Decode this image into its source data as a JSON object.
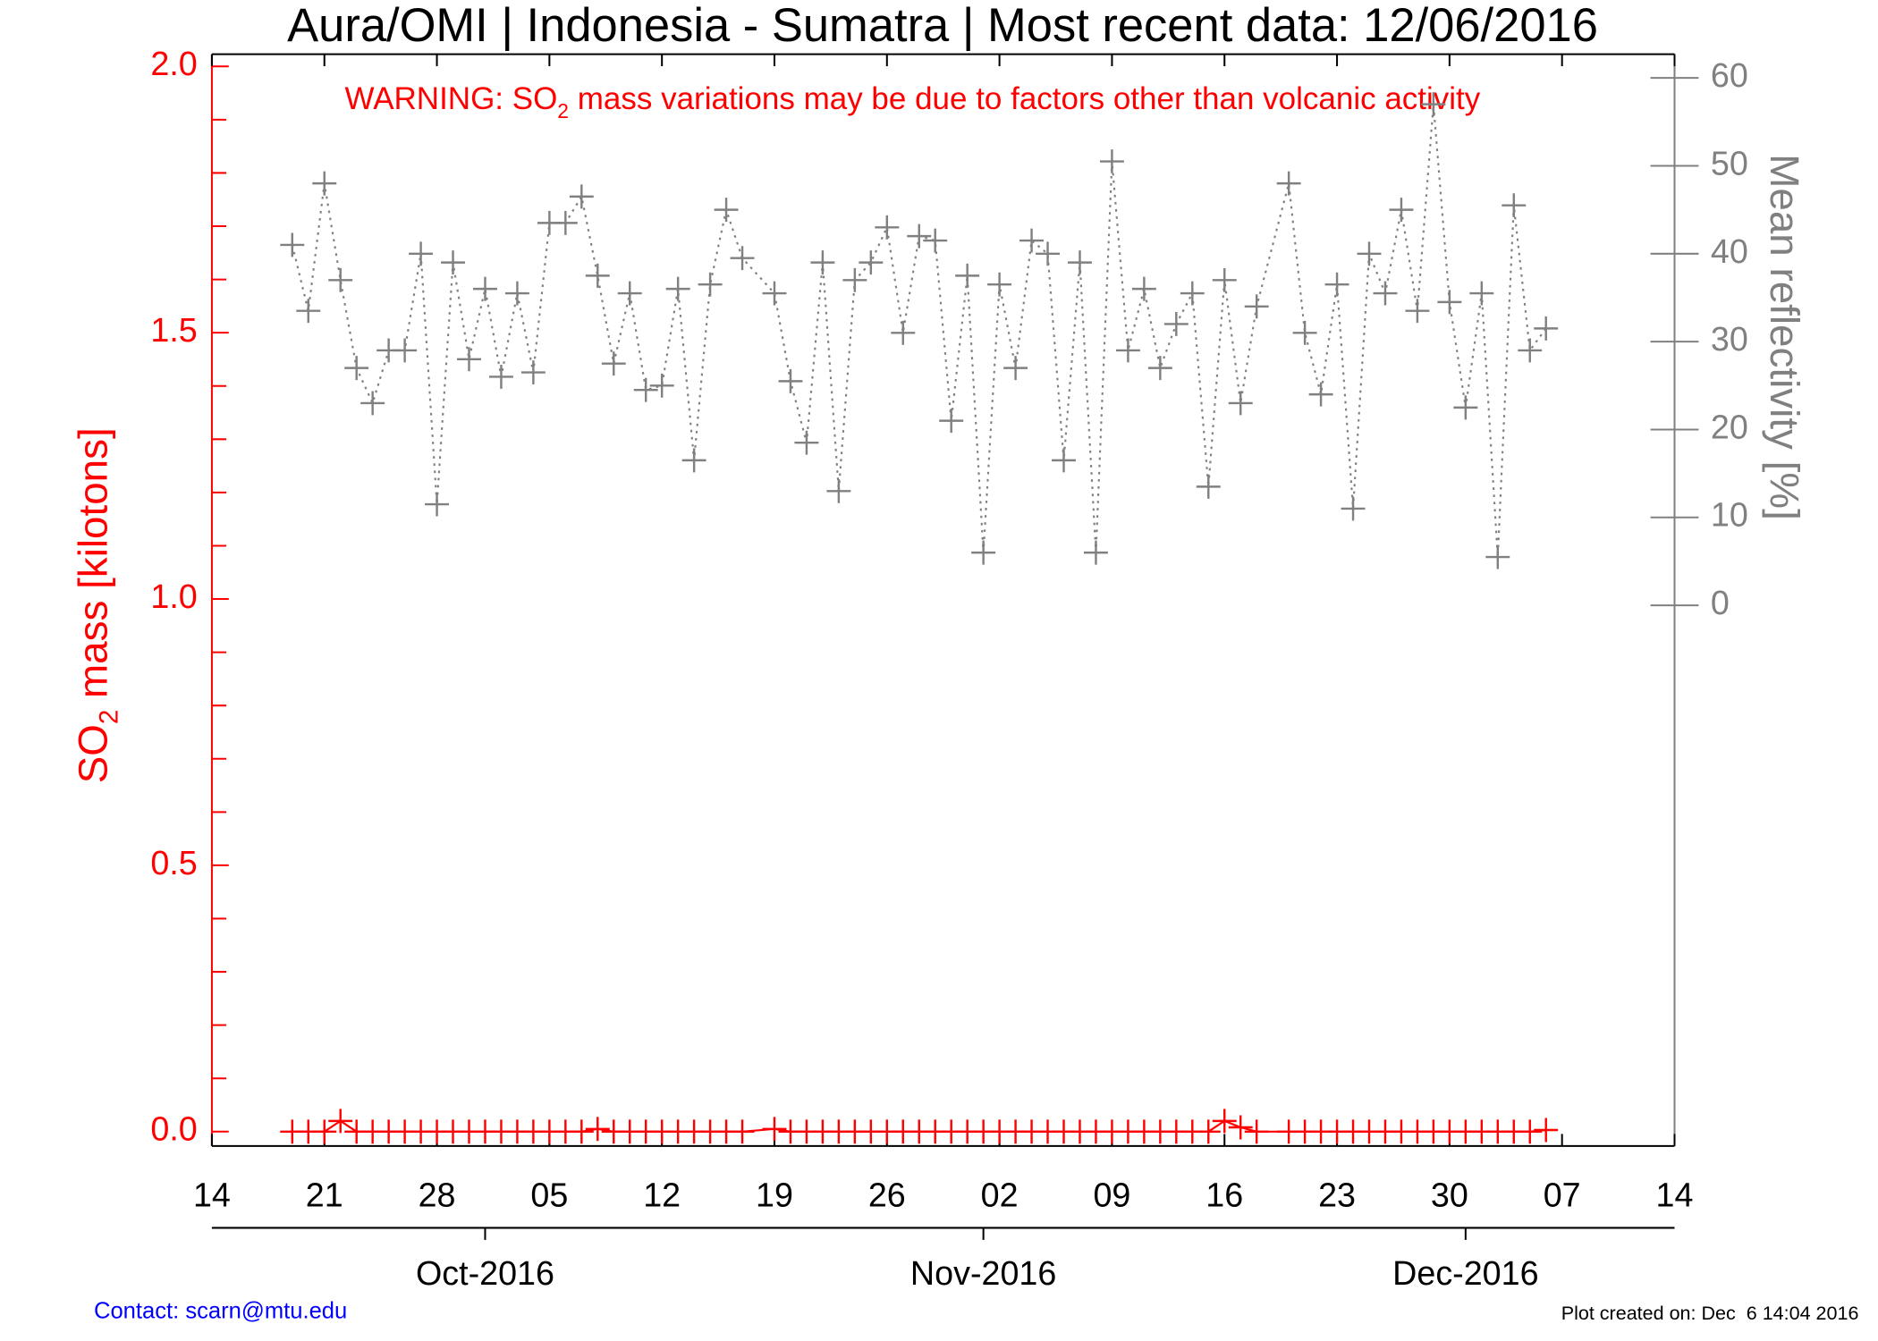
{
  "chart_data": {
    "type": "line",
    "title": "Aura/OMI | Indonesia - Sumatra | Most recent data: 12/06/2016",
    "warning": {
      "before": "WARNING: SO",
      "sub": "2",
      "after": " mass variations may be due to factors other than volcanic activity"
    },
    "ylabel": {
      "before": "SO",
      "sub": "2",
      "after": " mass [kilotons]"
    },
    "y2label": "Mean reflectivity [%]",
    "contact": "Contact: scarn@mtu.edu",
    "created": "Plot created on: Dec  6 14:04 2016",
    "xlim": [
      "2016-09-14",
      "2016-12-14"
    ],
    "xticks": [
      {
        "value": "2016-09-14",
        "label": "14"
      },
      {
        "value": "2016-09-21",
        "label": "21"
      },
      {
        "value": "2016-09-28",
        "label": "28"
      },
      {
        "value": "2016-10-05",
        "label": "05"
      },
      {
        "value": "2016-10-12",
        "label": "12"
      },
      {
        "value": "2016-10-19",
        "label": "19"
      },
      {
        "value": "2016-10-26",
        "label": "26"
      },
      {
        "value": "2016-11-02",
        "label": "02"
      },
      {
        "value": "2016-11-09",
        "label": "09"
      },
      {
        "value": "2016-11-16",
        "label": "16"
      },
      {
        "value": "2016-11-23",
        "label": "23"
      },
      {
        "value": "2016-11-30",
        "label": "30"
      },
      {
        "value": "2016-12-07",
        "label": "07"
      },
      {
        "value": "2016-12-14",
        "label": "14"
      }
    ],
    "month_ticks": [
      {
        "value": "2016-10-01",
        "label": "Oct-2016"
      },
      {
        "value": "2016-11-01",
        "label": "Nov-2016"
      },
      {
        "value": "2016-12-01",
        "label": "Dec-2016"
      }
    ],
    "ylim": [
      -0.027,
      2.023
    ],
    "yticks": [
      {
        "value": 0,
        "label": "0.0"
      },
      {
        "value": 0.5,
        "label": "0.5"
      },
      {
        "value": 1,
        "label": "1.0"
      },
      {
        "value": 1.5,
        "label": "1.5"
      },
      {
        "value": 2,
        "label": "2.0"
      }
    ],
    "yminorticks": [
      0.1,
      0.2,
      0.3,
      0.4,
      0.6,
      0.7,
      0.8,
      0.9,
      1.1,
      1.2,
      1.3,
      1.4,
      1.6,
      1.7,
      1.8,
      1.9
    ],
    "y2lim": [
      -61.5,
      62.7
    ],
    "y2ticks": [
      0,
      10,
      20,
      30,
      40,
      50,
      60
    ],
    "y_color": "#ff0000",
    "y2_color": "#808080",
    "x": [
      "2016-09-19",
      "2016-09-20",
      "2016-09-21",
      "2016-09-22",
      "2016-09-23",
      "2016-09-24",
      "2016-09-25",
      "2016-09-26",
      "2016-09-27",
      "2016-09-28",
      "2016-09-29",
      "2016-09-30",
      "2016-10-01",
      "2016-10-02",
      "2016-10-03",
      "2016-10-04",
      "2016-10-05",
      "2016-10-06",
      "2016-10-07",
      "2016-10-08",
      "2016-10-09",
      "2016-10-10",
      "2016-10-11",
      "2016-10-12",
      "2016-10-13",
      "2016-10-14",
      "2016-10-15",
      "2016-10-16",
      "2016-10-17",
      "2016-10-19",
      "2016-10-20",
      "2016-10-21",
      "2016-10-22",
      "2016-10-23",
      "2016-10-24",
      "2016-10-25",
      "2016-10-26",
      "2016-10-27",
      "2016-10-28",
      "2016-10-29",
      "2016-10-30",
      "2016-10-31",
      "2016-11-01",
      "2016-11-02",
      "2016-11-03",
      "2016-11-04",
      "2016-11-05",
      "2016-11-06",
      "2016-11-07",
      "2016-11-08",
      "2016-11-09",
      "2016-11-10",
      "2016-11-11",
      "2016-11-12",
      "2016-11-13",
      "2016-11-14",
      "2016-11-15",
      "2016-11-16",
      "2016-11-17",
      "2016-11-18",
      "2016-11-20",
      "2016-11-21",
      "2016-11-22",
      "2016-11-23",
      "2016-11-24",
      "2016-11-25",
      "2016-11-26",
      "2016-11-27",
      "2016-11-28",
      "2016-11-29",
      "2016-11-30",
      "2016-12-01",
      "2016-12-02",
      "2016-12-03",
      "2016-12-04",
      "2016-12-05",
      "2016-12-06"
    ],
    "series": [
      {
        "color": "#808080",
        "axis": "y2",
        "values": [
          41,
          33.5,
          48,
          37,
          27,
          23,
          29,
          29,
          40,
          11.5,
          39,
          28,
          36,
          26,
          35.5,
          26.5,
          43.5,
          43.5,
          46.5,
          37.5,
          27.5,
          35.5,
          24.5,
          25,
          36,
          16.5,
          36.5,
          45,
          39.5,
          35.5,
          25.5,
          18.5,
          39,
          13,
          37,
          39,
          43,
          31,
          42,
          41.5,
          21,
          37.5,
          6,
          36.5,
          27,
          41.5,
          40,
          16.5,
          39,
          6,
          50.5,
          29,
          36,
          27,
          32,
          35.5,
          13.5,
          37,
          23,
          34,
          48,
          31,
          24,
          36.5,
          11,
          40,
          35.5,
          45,
          33.5,
          57,
          34.5,
          22.5,
          35.5,
          5.5,
          45.5,
          29,
          31.5
        ]
      },
      {
        "color": "#ff0000",
        "axis": "y",
        "values": [
          0,
          0,
          0,
          0.02,
          0,
          0,
          0,
          0,
          0,
          0,
          0,
          0,
          0,
          0,
          0,
          0,
          0,
          0,
          0,
          0.005,
          0,
          0,
          0,
          0,
          0,
          0,
          0,
          0,
          0,
          0.005,
          0,
          0,
          0,
          0,
          0,
          0,
          0,
          0,
          0,
          0,
          0,
          0,
          0,
          0,
          0,
          0,
          0,
          0,
          0,
          0,
          0,
          0,
          0,
          0,
          0,
          0,
          0,
          0.02,
          0.008,
          0,
          0,
          0,
          0,
          0,
          0,
          0,
          0,
          0,
          0,
          0,
          0,
          0,
          0,
          0,
          0,
          0,
          0.003
        ]
      }
    ]
  }
}
